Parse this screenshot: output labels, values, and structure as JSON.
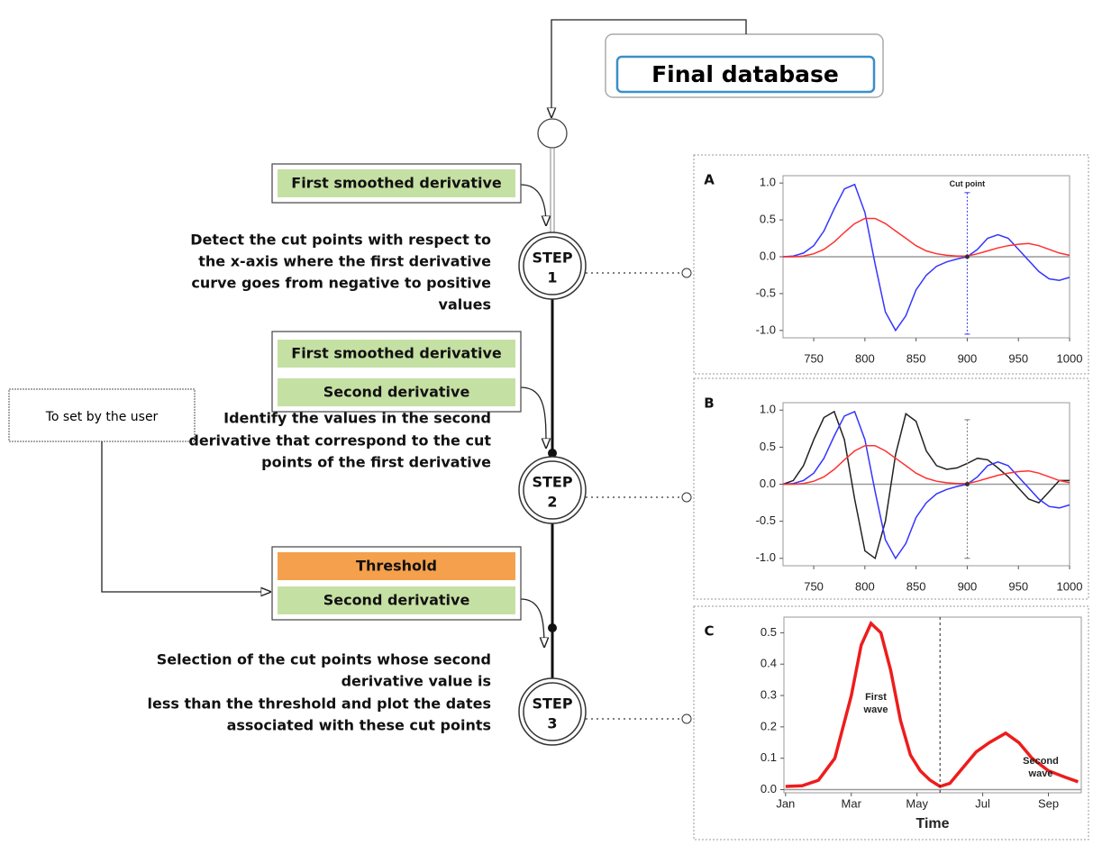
{
  "final_database": "Final database",
  "user_box": "To set by the user",
  "steps": [
    {
      "label": "STEP",
      "number": "1",
      "description": [
        "Detect the cut points with respect to",
        "the x-axis where the first derivative",
        "curve goes from negative to positive",
        "values"
      ],
      "inputs": [
        {
          "text": "First smoothed derivative",
          "color": "#c5e0a3"
        }
      ]
    },
    {
      "label": "STEP",
      "number": "2",
      "description": [
        "Identify the values in the second",
        "derivative that correspond to the cut",
        "points of the first derivative"
      ],
      "inputs": [
        {
          "text": "First smoothed derivative",
          "color": "#c5e0a3"
        },
        {
          "text": "Second derivative",
          "color": "#c5e0a3"
        }
      ]
    },
    {
      "label": "STEP",
      "number": "3",
      "description": [
        "Selection of the cut points whose second",
        "derivative value is",
        "less than the threshold and plot the dates",
        "associated with these cut points"
      ],
      "inputs": [
        {
          "text": "Threshold",
          "color": "#f5a04c"
        },
        {
          "text": "Second derivative",
          "color": "#c5e0a3"
        }
      ]
    }
  ],
  "panels": [
    {
      "letter": "A",
      "chart": {
        "type": "line",
        "xlim": [
          720,
          1000
        ],
        "ylim": [
          -1.1,
          1.1
        ],
        "xticks": [
          750,
          800,
          850,
          900,
          950,
          1000
        ],
        "yticks": [
          {
            "value": 1,
            "label": "1.0"
          },
          0.5,
          {
            "value": 0,
            "label": "0.0"
          },
          -0.5,
          {
            "value": -1,
            "label": "-1.0"
          }
        ],
        "x": [
          720,
          730,
          740,
          750,
          760,
          770,
          780,
          790,
          800,
          810,
          820,
          830,
          840,
          850,
          860,
          870,
          880,
          890,
          900,
          910,
          920,
          930,
          940,
          950,
          960,
          970,
          980,
          990,
          1000
        ],
        "series": [
          {
            "color": "#3535ff",
            "values": [
              0,
              0.01,
              0.05,
              0.15,
              0.35,
              0.65,
              0.92,
              0.98,
              0.6,
              -0.1,
              -0.75,
              -1.0,
              -0.8,
              -0.45,
              -0.25,
              -0.13,
              -0.07,
              -0.03,
              0,
              0.1,
              0.25,
              0.3,
              0.25,
              0.1,
              -0.05,
              -0.2,
              -0.3,
              -0.32,
              -0.28
            ]
          },
          {
            "color": "#ff3030",
            "values": [
              0,
              0,
              0.01,
              0.04,
              0.1,
              0.2,
              0.33,
              0.45,
              0.52,
              0.52,
              0.45,
              0.35,
              0.25,
              0.15,
              0.08,
              0.04,
              0.02,
              0.01,
              0.01,
              0.04,
              0.08,
              0.12,
              0.15,
              0.17,
              0.18,
              0.15,
              0.1,
              0.05,
              0.02
            ]
          }
        ],
        "cut_point": {
          "x": 900,
          "low": -1.05,
          "high": 0.87,
          "color": "#3535ff"
        },
        "annotation": "Cut point"
      }
    },
    {
      "letter": "B",
      "chart": {
        "type": "line",
        "xlim": [
          720,
          1000
        ],
        "ylim": [
          -1.1,
          1.1
        ],
        "xticks": [
          750,
          800,
          850,
          900,
          950,
          1000
        ],
        "yticks": [
          {
            "value": 1,
            "label": "1.0"
          },
          0.5,
          {
            "value": 0,
            "label": "0.0"
          },
          -0.5,
          {
            "value": -1,
            "label": "-1.0"
          }
        ],
        "x": [
          720,
          730,
          740,
          750,
          760,
          770,
          780,
          790,
          800,
          810,
          820,
          830,
          840,
          850,
          860,
          870,
          880,
          890,
          900,
          910,
          920,
          930,
          940,
          950,
          960,
          970,
          980,
          990,
          1000
        ],
        "series": [
          {
            "color": "#222222",
            "values": [
              0,
              0.05,
              0.25,
              0.6,
              0.9,
              0.98,
              0.6,
              -0.2,
              -0.9,
              -1.0,
              -0.5,
              0.4,
              0.95,
              0.85,
              0.45,
              0.25,
              0.2,
              0.22,
              0.28,
              0.35,
              0.33,
              0.22,
              0.1,
              -0.05,
              -0.2,
              -0.25,
              -0.1,
              0.05,
              0.05
            ]
          },
          {
            "color": "#3535ff",
            "values": [
              0,
              0.01,
              0.05,
              0.15,
              0.35,
              0.65,
              0.92,
              0.98,
              0.6,
              -0.1,
              -0.75,
              -1.0,
              -0.8,
              -0.45,
              -0.25,
              -0.13,
              -0.07,
              -0.03,
              0,
              0.1,
              0.25,
              0.3,
              0.25,
              0.1,
              -0.05,
              -0.2,
              -0.3,
              -0.32,
              -0.28
            ]
          },
          {
            "color": "#ff3030",
            "values": [
              0,
              0,
              0.01,
              0.04,
              0.1,
              0.2,
              0.33,
              0.45,
              0.52,
              0.52,
              0.45,
              0.35,
              0.25,
              0.15,
              0.08,
              0.04,
              0.02,
              0.01,
              0.01,
              0.04,
              0.08,
              0.12,
              0.15,
              0.17,
              0.18,
              0.15,
              0.1,
              0.05,
              0.02
            ]
          }
        ],
        "cut_point": {
          "x": 900,
          "low": -1.0,
          "high": 0.87,
          "color": "#777777"
        }
      }
    },
    {
      "letter": "C",
      "chart": {
        "type": "line",
        "xlim": [
          0.95,
          10
        ],
        "ylim": [
          -0.01,
          0.55
        ],
        "xticks": [
          {
            "value": 1,
            "label": "Jan"
          },
          {
            "value": 3,
            "label": "Mar"
          },
          {
            "value": 5,
            "label": "May"
          },
          {
            "value": 7,
            "label": "Jul"
          },
          {
            "value": 9,
            "label": "Sep"
          }
        ],
        "yticks": [
          {
            "value": 0,
            "label": "0.0"
          },
          0.1,
          0.2,
          0.3,
          0.4,
          0.5
        ],
        "x_label": "Time",
        "x": [
          1,
          1.5,
          2,
          2.5,
          3,
          3.3,
          3.6,
          3.9,
          4.2,
          4.5,
          4.8,
          5.1,
          5.4,
          5.7,
          6,
          6.4,
          6.8,
          7.2,
          7.7,
          8.1,
          8.5,
          9,
          9.5,
          9.9
        ],
        "series": [
          {
            "color": "#ee1c1c",
            "values": [
              0.01,
              0.012,
              0.03,
              0.1,
              0.3,
              0.46,
              0.53,
              0.5,
              0.38,
              0.22,
              0.11,
              0.06,
              0.03,
              0.01,
              0.02,
              0.07,
              0.12,
              0.15,
              0.18,
              0.15,
              0.1,
              0.06,
              0.04,
              0.025
            ]
          }
        ],
        "cut_x": 5.7,
        "annotations": [
          [
            "First",
            "wave"
          ],
          [
            "Second",
            "wave"
          ]
        ]
      }
    }
  ]
}
